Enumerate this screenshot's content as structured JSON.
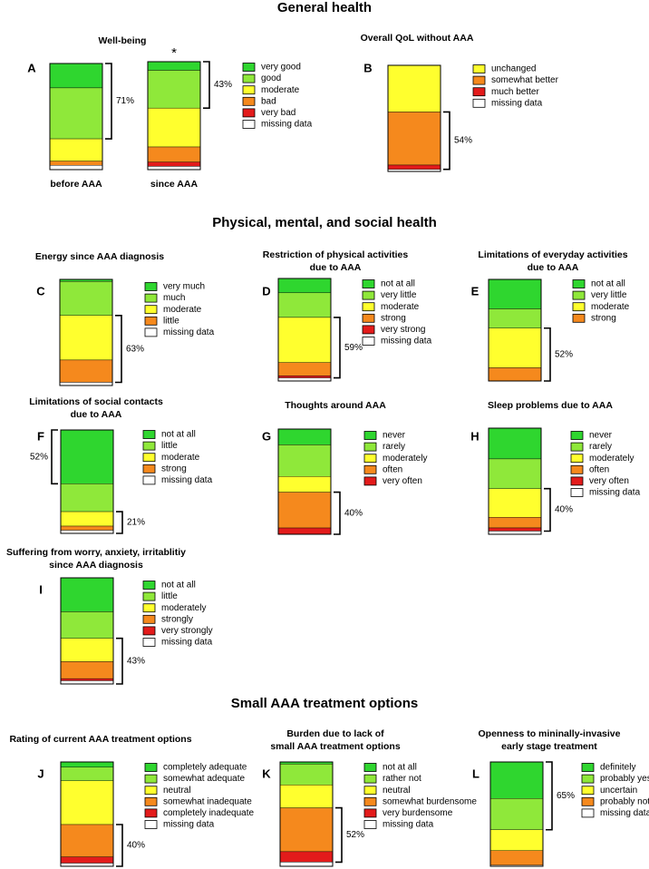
{
  "headings": [
    "General health",
    "Physical, mental, and social health",
    "Small AAA treatment options"
  ],
  "chart_data": [
    {
      "type": "stacked-bar",
      "letter": "A",
      "title": [
        "Well-being"
      ],
      "categories": [
        "before AAA",
        "since AAA"
      ],
      "note": "*",
      "ylim": [
        0,
        100
      ],
      "series": [
        {
          "name": "very good",
          "color": "#2fd62f",
          "values": [
            23,
            8
          ]
        },
        {
          "name": "good",
          "color": "#8fe83a",
          "values": [
            48,
            35
          ]
        },
        {
          "name": "moderate",
          "color": "#ffff2e",
          "values": [
            21,
            36
          ]
        },
        {
          "name": "bad",
          "color": "#f5891d",
          "values": [
            4,
            14
          ]
        },
        {
          "name": "very bad",
          "color": "#e31b1b",
          "values": [
            0,
            4
          ]
        },
        {
          "name": "missing data",
          "color": "#ffffff",
          "values": [
            4,
            3
          ]
        }
      ],
      "brackets": [
        {
          "value": 71,
          "label": "71%"
        },
        {
          "value": 43,
          "label": "43%"
        }
      ]
    },
    {
      "type": "stacked-bar",
      "letter": "B",
      "title": [
        "Overall QoL without AAA"
      ],
      "ylim": [
        0,
        100
      ],
      "series": [
        {
          "name": "unchanged",
          "color": "#ffff2e",
          "values": [
            44
          ]
        },
        {
          "name": "somewhat better",
          "color": "#f5891d",
          "values": [
            50
          ]
        },
        {
          "name": "much better",
          "color": "#e31b1b",
          "values": [
            4
          ]
        },
        {
          "name": "missing data",
          "color": "#ffffff",
          "values": [
            2
          ]
        }
      ],
      "brackets": [
        {
          "value": 54,
          "label": "54%"
        }
      ]
    },
    {
      "type": "stacked-bar",
      "letter": "C",
      "title": [
        "Energy since AAA diagnosis"
      ],
      "ylim": [
        0,
        100
      ],
      "series": [
        {
          "name": "very much",
          "color": "#2fd62f",
          "values": [
            2
          ]
        },
        {
          "name": "much",
          "color": "#8fe83a",
          "values": [
            32
          ]
        },
        {
          "name": "moderate",
          "color": "#ffff2e",
          "values": [
            42
          ]
        },
        {
          "name": "little",
          "color": "#f5891d",
          "values": [
            21
          ]
        },
        {
          "name": "missing data",
          "color": "#ffffff",
          "values": [
            3
          ]
        }
      ],
      "brackets": [
        {
          "value": 63,
          "label": "63%"
        }
      ]
    },
    {
      "type": "stacked-bar",
      "letter": "D",
      "title": [
        "Restriction of physical activities",
        "due to AAA"
      ],
      "ylim": [
        0,
        100
      ],
      "series": [
        {
          "name": "not at all",
          "color": "#2fd62f",
          "values": [
            14
          ]
        },
        {
          "name": "very little",
          "color": "#8fe83a",
          "values": [
            24
          ]
        },
        {
          "name": "moderate",
          "color": "#ffff2e",
          "values": [
            44
          ]
        },
        {
          "name": "strong",
          "color": "#f5891d",
          "values": [
            13
          ]
        },
        {
          "name": "very strong",
          "color": "#e31b1b",
          "values": [
            2
          ]
        },
        {
          "name": "missing data",
          "color": "#ffffff",
          "values": [
            3
          ]
        }
      ],
      "brackets": [
        {
          "value": 59,
          "label": "59%"
        }
      ]
    },
    {
      "type": "stacked-bar",
      "letter": "E",
      "title": [
        "Limitations of everyday activities",
        "due to AAA"
      ],
      "ylim": [
        0,
        100
      ],
      "series": [
        {
          "name": "not at all",
          "color": "#2fd62f",
          "values": [
            29
          ]
        },
        {
          "name": "very little",
          "color": "#8fe83a",
          "values": [
            19
          ]
        },
        {
          "name": "moderate",
          "color": "#ffff2e",
          "values": [
            39
          ]
        },
        {
          "name": "strong",
          "color": "#f5891d",
          "values": [
            13
          ]
        }
      ],
      "brackets": [
        {
          "value": 52,
          "label": "52%"
        }
      ]
    },
    {
      "type": "stacked-bar",
      "letter": "F",
      "title": [
        "Limitations of social contacts",
        "due to AAA"
      ],
      "ylim": [
        0,
        100
      ],
      "series": [
        {
          "name": "not at all",
          "color": "#2fd62f",
          "values": [
            52
          ]
        },
        {
          "name": "little",
          "color": "#8fe83a",
          "values": [
            27
          ]
        },
        {
          "name": "moderate",
          "color": "#ffff2e",
          "values": [
            14
          ]
        },
        {
          "name": "strong",
          "color": "#f5891d",
          "values": [
            4
          ]
        },
        {
          "name": "missing data",
          "color": "#ffffff",
          "values": [
            3
          ]
        }
      ],
      "brackets": [
        {
          "value": 52,
          "label": "52%"
        },
        {
          "value": 21,
          "label": "21%"
        }
      ]
    },
    {
      "type": "stacked-bar",
      "letter": "G",
      "title": [
        "Thoughts around AAA"
      ],
      "ylim": [
        0,
        100
      ],
      "series": [
        {
          "name": "never",
          "color": "#2fd62f",
          "values": [
            15
          ]
        },
        {
          "name": "rarely",
          "color": "#8fe83a",
          "values": [
            30
          ]
        },
        {
          "name": "moderately",
          "color": "#ffff2e",
          "values": [
            15
          ]
        },
        {
          "name": "often",
          "color": "#f5891d",
          "values": [
            34
          ]
        },
        {
          "name": "very often",
          "color": "#e31b1b",
          "values": [
            6
          ]
        }
      ],
      "brackets": [
        {
          "value": 40,
          "label": "40%"
        }
      ]
    },
    {
      "type": "stacked-bar",
      "letter": "H",
      "title": [
        "Sleep problems due to AAA"
      ],
      "ylim": [
        0,
        100
      ],
      "series": [
        {
          "name": "never",
          "color": "#2fd62f",
          "values": [
            29
          ]
        },
        {
          "name": "rarely",
          "color": "#8fe83a",
          "values": [
            28
          ]
        },
        {
          "name": "moderately",
          "color": "#ffff2e",
          "values": [
            27
          ]
        },
        {
          "name": "often",
          "color": "#f5891d",
          "values": [
            10
          ]
        },
        {
          "name": "very often",
          "color": "#e31b1b",
          "values": [
            3
          ]
        },
        {
          "name": "missing data",
          "color": "#ffffff",
          "values": [
            3
          ]
        }
      ],
      "brackets": [
        {
          "value": 40,
          "label": "40%"
        }
      ]
    },
    {
      "type": "stacked-bar",
      "letter": "I",
      "title": [
        "Suffering from worry, anxiety, irritablitiy",
        "since AAA diagnosis"
      ],
      "ylim": [
        0,
        100
      ],
      "series": [
        {
          "name": "not at all",
          "color": "#2fd62f",
          "values": [
            32
          ]
        },
        {
          "name": "little",
          "color": "#8fe83a",
          "values": [
            25
          ]
        },
        {
          "name": "moderately",
          "color": "#ffff2e",
          "values": [
            22
          ]
        },
        {
          "name": "strongly",
          "color": "#f5891d",
          "values": [
            16
          ]
        },
        {
          "name": "very strongly",
          "color": "#e31b1b",
          "values": [
            2
          ]
        },
        {
          "name": "missing data",
          "color": "#ffffff",
          "values": [
            3
          ]
        }
      ],
      "brackets": [
        {
          "value": 43,
          "label": "43%"
        }
      ]
    },
    {
      "type": "stacked-bar",
      "letter": "J",
      "title": [
        "Rating of current AAA treatment options"
      ],
      "ylim": [
        0,
        100
      ],
      "series": [
        {
          "name": "completely adequate",
          "color": "#2fd62f",
          "values": [
            5
          ]
        },
        {
          "name": "somewhat adequate",
          "color": "#8fe83a",
          "values": [
            13
          ]
        },
        {
          "name": "neutral",
          "color": "#ffff2e",
          "values": [
            42
          ]
        },
        {
          "name": "somewhat inadequate",
          "color": "#f5891d",
          "values": [
            31
          ]
        },
        {
          "name": "completely inadequate",
          "color": "#e31b1b",
          "values": [
            6
          ]
        },
        {
          "name": "missing data",
          "color": "#ffffff",
          "values": [
            3
          ]
        }
      ],
      "brackets": [
        {
          "value": 40,
          "label": "40%"
        }
      ]
    },
    {
      "type": "stacked-bar",
      "letter": "K",
      "title": [
        "Burden due to lack of",
        "small AAA treatment options"
      ],
      "ylim": [
        0,
        100
      ],
      "series": [
        {
          "name": "not at all",
          "color": "#2fd62f",
          "values": [
            2
          ]
        },
        {
          "name": "rather not",
          "color": "#8fe83a",
          "values": [
            20
          ]
        },
        {
          "name": "neutral",
          "color": "#ffff2e",
          "values": [
            22
          ]
        },
        {
          "name": "somewhat burdensome",
          "color": "#f5891d",
          "values": [
            42
          ]
        },
        {
          "name": "very burdensome",
          "color": "#e31b1b",
          "values": [
            10
          ]
        },
        {
          "name": "missing data",
          "color": "#ffffff",
          "values": [
            4
          ]
        }
      ],
      "brackets": [
        {
          "value": 52,
          "label": "52%"
        }
      ]
    },
    {
      "type": "stacked-bar",
      "letter": "L",
      "title": [
        "Openness to mininally-invasive",
        "early stage treatment"
      ],
      "ylim": [
        0,
        100
      ],
      "series": [
        {
          "name": "definitely",
          "color": "#2fd62f",
          "values": [
            35
          ]
        },
        {
          "name": "probably yes",
          "color": "#8fe83a",
          "values": [
            30
          ]
        },
        {
          "name": "uncertain",
          "color": "#ffff2e",
          "values": [
            20
          ]
        },
        {
          "name": "probably not",
          "color": "#f5891d",
          "values": [
            14
          ]
        },
        {
          "name": "missing data",
          "color": "#ffffff",
          "values": [
            1
          ]
        }
      ],
      "brackets": [
        {
          "value": 65,
          "label": "65%"
        }
      ]
    }
  ]
}
